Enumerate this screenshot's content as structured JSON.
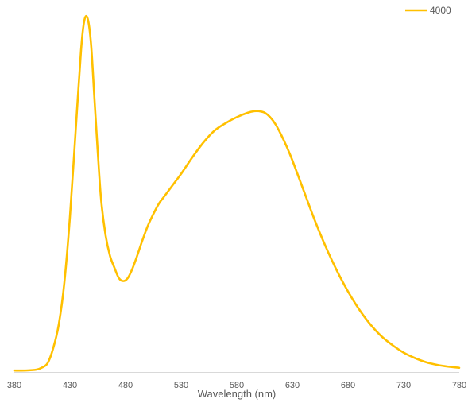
{
  "chart_data": {
    "type": "line",
    "title": "",
    "xlabel": "Wavelength (nm)",
    "ylabel": "",
    "xlim": [
      380,
      780
    ],
    "ylim": [
      0,
      1.2
    ],
    "x_ticks": [
      "380",
      "430",
      "480",
      "530",
      "580",
      "630",
      "680",
      "730",
      "780"
    ],
    "grid": false,
    "legend": "top-right",
    "series": [
      {
        "name": "4000",
        "color": "#FFC000",
        "points": [
          [
            380,
            0.005
          ],
          [
            390,
            0.005
          ],
          [
            400,
            0.008
          ],
          [
            405,
            0.015
          ],
          [
            410,
            0.03
          ],
          [
            415,
            0.08
          ],
          [
            420,
            0.16
          ],
          [
            425,
            0.3
          ],
          [
            430,
            0.52
          ],
          [
            435,
            0.8
          ],
          [
            440,
            1.08
          ],
          [
            443,
            1.18
          ],
          [
            446,
            1.185
          ],
          [
            449,
            1.1
          ],
          [
            452,
            0.92
          ],
          [
            455,
            0.74
          ],
          [
            458,
            0.58
          ],
          [
            462,
            0.46
          ],
          [
            466,
            0.39
          ],
          [
            470,
            0.35
          ],
          [
            474,
            0.315
          ],
          [
            478,
            0.305
          ],
          [
            482,
            0.315
          ],
          [
            486,
            0.345
          ],
          [
            490,
            0.385
          ],
          [
            495,
            0.44
          ],
          [
            500,
            0.49
          ],
          [
            505,
            0.53
          ],
          [
            510,
            0.565
          ],
          [
            515,
            0.59
          ],
          [
            520,
            0.615
          ],
          [
            525,
            0.64
          ],
          [
            530,
            0.665
          ],
          [
            540,
            0.72
          ],
          [
            550,
            0.77
          ],
          [
            560,
            0.81
          ],
          [
            570,
            0.835
          ],
          [
            580,
            0.855
          ],
          [
            590,
            0.87
          ],
          [
            596,
            0.875
          ],
          [
            600,
            0.875
          ],
          [
            605,
            0.87
          ],
          [
            610,
            0.855
          ],
          [
            615,
            0.83
          ],
          [
            620,
            0.795
          ],
          [
            625,
            0.755
          ],
          [
            630,
            0.71
          ],
          [
            640,
            0.61
          ],
          [
            650,
            0.51
          ],
          [
            660,
            0.42
          ],
          [
            670,
            0.34
          ],
          [
            680,
            0.27
          ],
          [
            690,
            0.21
          ],
          [
            700,
            0.16
          ],
          [
            710,
            0.12
          ],
          [
            720,
            0.09
          ],
          [
            730,
            0.065
          ],
          [
            740,
            0.047
          ],
          [
            750,
            0.033
          ],
          [
            760,
            0.024
          ],
          [
            770,
            0.018
          ],
          [
            780,
            0.014
          ]
        ]
      }
    ]
  }
}
